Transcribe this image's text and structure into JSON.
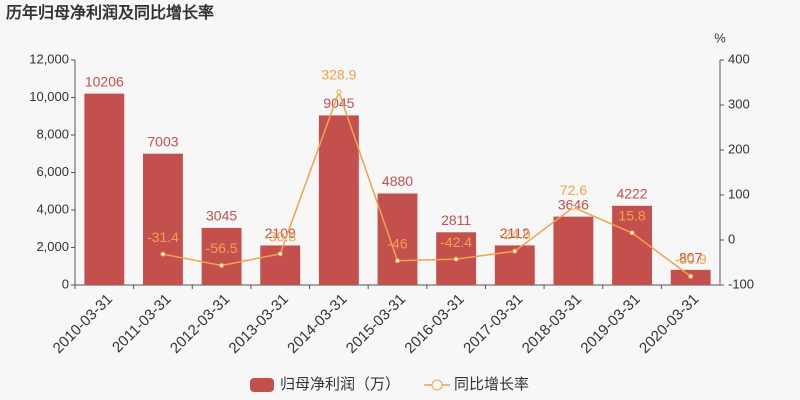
{
  "chart_data": {
    "type": "bar",
    "title": "历年归母净利润及同比增长率",
    "categories": [
      "2010-03-31",
      "2011-03-31",
      "2012-03-31",
      "2013-03-31",
      "2014-03-31",
      "2015-03-31",
      "2016-03-31",
      "2017-03-31",
      "2018-03-31",
      "2019-03-31",
      "2020-03-31"
    ],
    "series": [
      {
        "name": "归母净利润（万）",
        "color": "#c4504e",
        "values": [
          10206,
          7003,
          3045,
          2109,
          9045,
          4880,
          2811,
          2112,
          3646,
          4222,
          807
        ]
      },
      {
        "name": "同比增长率",
        "color": "#f3a14b",
        "type": "line",
        "axis": "y2",
        "values": [
          null,
          -31.4,
          -56.5,
          -30.8,
          328.9,
          -46,
          -42.4,
          -24.9,
          72.6,
          15.8,
          -80.9
        ]
      }
    ],
    "ylim": [
      0,
      12000
    ],
    "yticks": [
      0,
      {
        "value": 2000,
        "label": "2,000"
      },
      {
        "value": 4000,
        "label": "4,000"
      },
      {
        "value": 6000,
        "label": "6,000"
      },
      {
        "value": 8000,
        "label": "8,000"
      },
      {
        "value": 10000,
        "label": "10,000"
      },
      {
        "value": 12000,
        "label": "12,000"
      }
    ],
    "y2lim": [
      -100,
      400
    ],
    "y2ticks": [
      -100,
      0,
      100,
      200,
      300,
      400
    ],
    "y2label": "%",
    "legend": "bottom"
  }
}
